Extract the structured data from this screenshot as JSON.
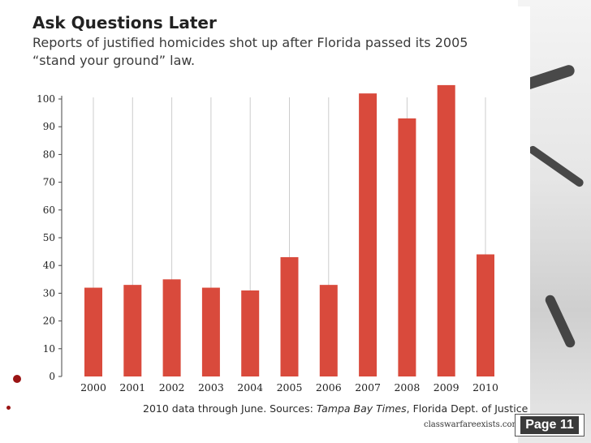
{
  "slide": {
    "title": "Ask Questions Later",
    "subtitle": "Reports of justified homicides shot up after Florida passed its 2005 “stand your ground” law.",
    "source_prefix": "2010 data through June. Sources: ",
    "source_italic": "Tampa Bay Times",
    "source_suffix": ", Florida Dept. of Justice",
    "site": "classwarfareexists.com",
    "page_label": "Page 11"
  },
  "colors": {
    "bar": "#d94a3c",
    "grid": "#cccccc",
    "text": "#222222"
  },
  "chart_data": {
    "type": "bar",
    "title": "Ask Questions Later",
    "subtitle": "Reports of justified homicides shot up after Florida passed its 2005 “stand your ground” law.",
    "xlabel": "",
    "ylabel": "",
    "categories": [
      "2000",
      "2001",
      "2002",
      "2003",
      "2004",
      "2005",
      "2006",
      "2007",
      "2008",
      "2009",
      "2010"
    ],
    "values": [
      32,
      33,
      35,
      32,
      31,
      43,
      33,
      102,
      93,
      105,
      44
    ],
    "ylim": [
      0,
      100
    ],
    "yticks": [
      0,
      10,
      20,
      30,
      40,
      50,
      60,
      70,
      80,
      90,
      100
    ],
    "grid": "vertical"
  }
}
